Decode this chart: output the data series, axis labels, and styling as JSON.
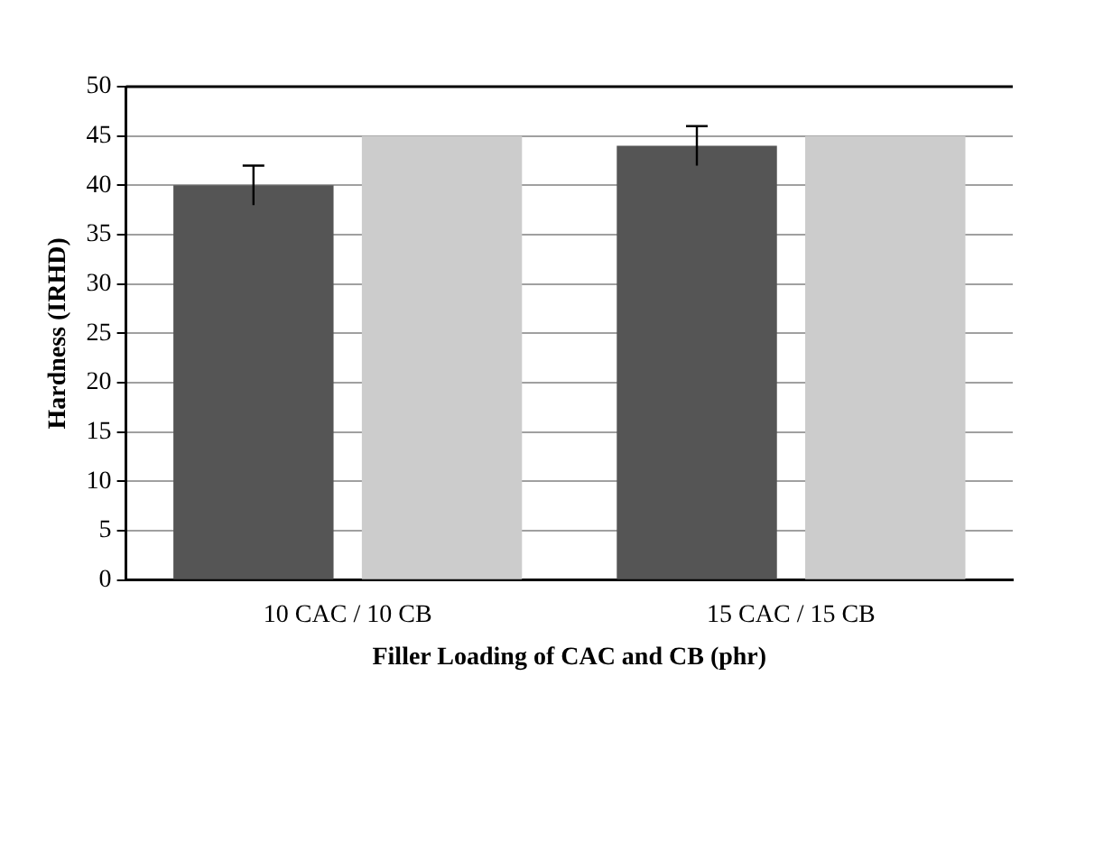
{
  "chart_data": {
    "type": "bar",
    "xlabel": "Filler Loading of CAC and CB (phr)",
    "ylabel": "Hardness (IRHD)",
    "categories": [
      "10 CAC / 10 CB",
      "15 CAC / 15 CB"
    ],
    "series": [
      {
        "color": "#555555",
        "values": [
          40,
          44
        ],
        "errors": [
          2,
          2
        ]
      },
      {
        "color": "#cccccc",
        "values": [
          45,
          45
        ]
      }
    ],
    "ylim": [
      0,
      50
    ],
    "yticks": [
      0,
      5,
      10,
      15,
      20,
      25,
      30,
      35,
      40,
      45,
      50
    ],
    "grid": "y",
    "legend": false
  }
}
